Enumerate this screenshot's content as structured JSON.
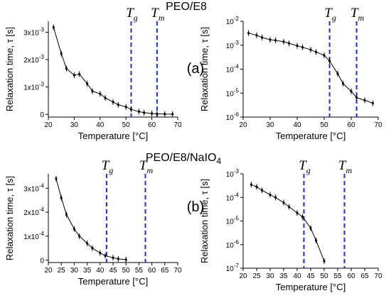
{
  "row_titles": [
    "PEO/E8",
    "PEO/E8/NaIO",
    "4"
  ],
  "panel_tags": [
    "(a)",
    "(b)"
  ],
  "marker_color": "#2233bb",
  "chart_data": [
    {
      "type": "line",
      "ylabel": "Relaxation time, τ [s]",
      "xlabel": "Temperature [°C]",
      "xlim": [
        20,
        70
      ],
      "xticks": [
        20,
        30,
        40,
        50,
        60,
        70
      ],
      "ylim": [
        -0.0001,
        0.0034
      ],
      "yscale": "linear",
      "yticks": [
        {
          "value": 0,
          "base": "0",
          "exp": ""
        },
        {
          "value": 0.001,
          "base": "1x10",
          "exp": "-3"
        },
        {
          "value": 0.002,
          "base": "2x10",
          "exp": "-3"
        },
        {
          "value": 0.003,
          "base": "3x10",
          "exp": "-3"
        }
      ],
      "x": [
        22,
        25,
        27,
        30,
        32,
        35,
        37,
        40,
        42,
        45,
        47,
        50,
        52,
        55,
        57,
        60,
        62,
        65,
        68
      ],
      "y": [
        0.00318,
        0.00222,
        0.00167,
        0.00143,
        0.00147,
        0.00112,
        0.00085,
        0.00075,
        0.0006,
        0.00045,
        0.00035,
        0.00027,
        0.00018,
        0.0001,
        6e-05,
        3e-05,
        2e-05,
        1e-05,
        7e-06
      ],
      "markers": [
        {
          "x": 52,
          "label": "T",
          "sub": "g"
        },
        {
          "x": 62,
          "label": "T",
          "sub": "m"
        }
      ]
    },
    {
      "type": "line",
      "ylabel": "Relaxation time, τ [s]",
      "xlabel": "Temperature [°C]",
      "xlim": [
        20,
        70
      ],
      "xticks": [
        20,
        30,
        40,
        50,
        60,
        70
      ],
      "ylim": [
        -6,
        -2
      ],
      "yscale": "log",
      "yticks": [
        {
          "value": -6,
          "base": "10",
          "exp": "-6"
        },
        {
          "value": -5,
          "base": "10",
          "exp": "-5"
        },
        {
          "value": -4,
          "base": "10",
          "exp": "-4"
        },
        {
          "value": -3,
          "base": "10",
          "exp": "-3"
        },
        {
          "value": -2,
          "base": "10",
          "exp": "-2"
        }
      ],
      "x": [
        22,
        25,
        27,
        30,
        32,
        35,
        37,
        40,
        42,
        45,
        47,
        50,
        52,
        55,
        57,
        60,
        62,
        65,
        68
      ],
      "y": [
        0.0032,
        0.0026,
        0.0021,
        0.0017,
        0.0016,
        0.0014,
        0.0012,
        0.00095,
        0.00082,
        0.00065,
        0.00052,
        0.00038,
        0.00022,
        6.5e-05,
        2.5e-05,
        1.2e-05,
        6.5e-06,
        5e-06,
        3.8e-06
      ],
      "markers": [
        {
          "x": 52,
          "label": "T",
          "sub": "g"
        },
        {
          "x": 62,
          "label": "T",
          "sub": "m"
        }
      ]
    },
    {
      "type": "line",
      "ylabel": "Relaxation time, τ [s]",
      "xlabel": "Temperature [°C]",
      "xlim": [
        20,
        70
      ],
      "xticks": [
        20,
        25,
        30,
        35,
        40,
        45,
        50,
        55,
        60,
        65,
        70
      ],
      "ylim": [
        -1e-05,
        0.00036
      ],
      "yscale": "linear",
      "yticks": [
        {
          "value": 0,
          "base": "0",
          "exp": ""
        },
        {
          "value": 0.0001,
          "base": "1x10",
          "exp": "-4"
        },
        {
          "value": 0.0002,
          "base": "2x10",
          "exp": "-4"
        },
        {
          "value": 0.0003,
          "base": "3x10",
          "exp": "-4"
        }
      ],
      "x": [
        23,
        25,
        27,
        30,
        32,
        35,
        37,
        40,
        42,
        45,
        47,
        50
      ],
      "y": [
        0.00034,
        0.00026,
        0.00019,
        0.00013,
        0.0001,
        7e-05,
        5e-05,
        3e-05,
        1.8e-05,
        1e-05,
        5e-06,
        2e-06
      ],
      "markers": [
        {
          "x": 42.5,
          "label": "T",
          "sub": "g"
        },
        {
          "x": 57.5,
          "label": "T",
          "sub": "m"
        }
      ]
    },
    {
      "type": "line",
      "ylabel": "Relaxation time, τ [s]",
      "xlabel": "Temperature [°C]",
      "xlim": [
        20,
        70
      ],
      "xticks": [
        20,
        25,
        30,
        35,
        40,
        45,
        50,
        55,
        60,
        65,
        70
      ],
      "ylim": [
        -7,
        -3
      ],
      "yscale": "log",
      "yticks": [
        {
          "value": -7,
          "base": "10",
          "exp": "-7"
        },
        {
          "value": -6,
          "base": "10",
          "exp": "-6"
        },
        {
          "value": -5,
          "base": "10",
          "exp": "-5"
        },
        {
          "value": -4,
          "base": "10",
          "exp": "-4"
        },
        {
          "value": -3,
          "base": "10",
          "exp": "-3"
        }
      ],
      "x": [
        23,
        25,
        27,
        30,
        32,
        35,
        37,
        40,
        42,
        45,
        47,
        50
      ],
      "y": [
        0.00035,
        0.00028,
        0.0002,
        0.00013,
        0.0001,
        6e-05,
        4e-05,
        2.2e-05,
        1.5e-05,
        5e-06,
        1.5e-06,
        2e-07
      ],
      "markers": [
        {
          "x": 42.5,
          "label": "T",
          "sub": "g"
        },
        {
          "x": 57.5,
          "label": "T",
          "sub": "m"
        }
      ]
    }
  ]
}
